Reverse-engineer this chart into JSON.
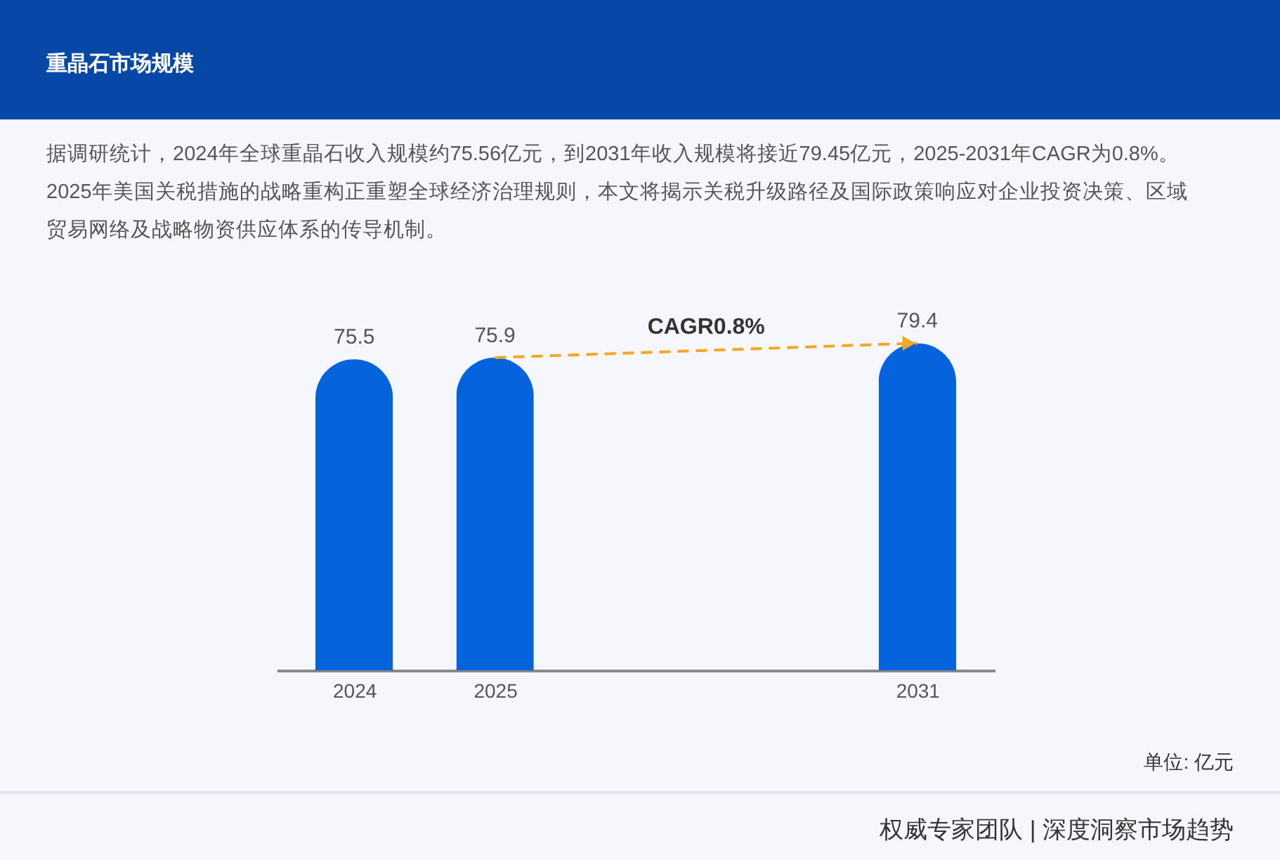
{
  "chart_data": {
    "type": "bar",
    "title": "重晶石市场规模",
    "subtitle": "据调研统计，2024年全球重晶石收入规模约75.56亿元，到2031年收入规模将接近79.45亿元，2025-2031年CAGR为0.8%。 2025年美国关税措施的战略重构正重塑全球经济治理规则，本文将揭示关税升级路径及国际政策响应对企业投资决策、区域贸易网络及战略物资供应体系的传导机制。",
    "categories": [
      "2024",
      "2025",
      null,
      null,
      "2031"
    ],
    "values": [
      75.5,
      75.9,
      null,
      null,
      79.4
    ],
    "color": "#0563dc",
    "data_labels": true,
    "annotations": [
      "CAGR0.8%",
      "单位: 亿元",
      "权威专家团队 | 深度洞察市场趋势"
    ]
  }
}
